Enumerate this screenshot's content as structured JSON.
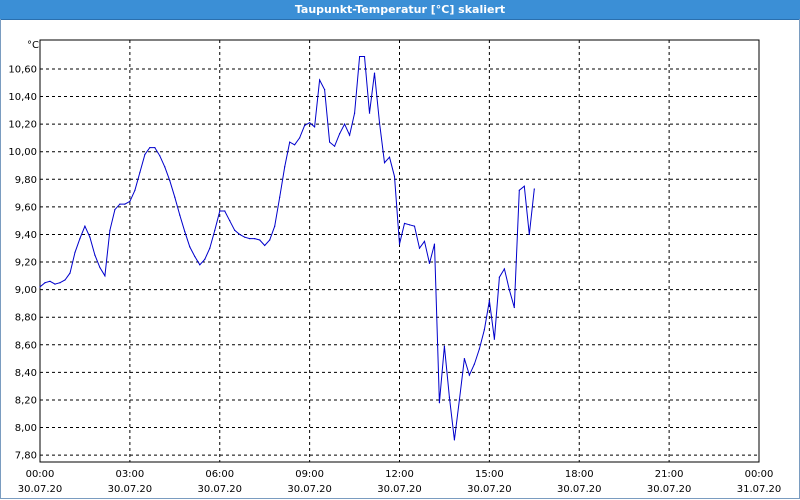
{
  "window": {
    "title": "Taupunkt-Temperatur [°C] skaliert"
  },
  "colors": {
    "titlebar": "#3b8fd6",
    "line": "#0000cc",
    "grid": "#000000"
  },
  "chart_data": {
    "type": "line",
    "title": "Taupunkt-Temperatur [°C] skaliert",
    "ylabel": "°C",
    "xlabel": "",
    "ylim": [
      7.75,
      10.81
    ],
    "xlim_hours": [
      0,
      24
    ],
    "grid": true,
    "grid_style": "dashed",
    "y_ticks": [
      7.8,
      8.0,
      8.2,
      8.4,
      8.6,
      8.8,
      9.0,
      9.2,
      9.4,
      9.6,
      9.8,
      10.0,
      10.2,
      10.4,
      10.6
    ],
    "y_tick_labels": [
      "7,80",
      "8,00",
      "8,20",
      "8,40",
      "8,60",
      "8,80",
      "9,00",
      "9,20",
      "9,40",
      "9,60",
      "9,80",
      "10,00",
      "10,20",
      "10,40",
      "10,60"
    ],
    "x_ticks": [
      {
        "time": "00:00",
        "date": "30.07.20"
      },
      {
        "time": "03:00",
        "date": "30.07.20"
      },
      {
        "time": "06:00",
        "date": "30.07.20"
      },
      {
        "time": "09:00",
        "date": "30.07.20"
      },
      {
        "time": "12:00",
        "date": "30.07.20"
      },
      {
        "time": "15:00",
        "date": "30.07.20"
      },
      {
        "time": "18:00",
        "date": "30.07.20"
      },
      {
        "time": "21:00",
        "date": "30.07.20"
      },
      {
        "time": "00:00",
        "date": "31.07.20"
      }
    ],
    "series": [
      {
        "name": "",
        "points": [
          [
            "00:00",
            9.02
          ],
          [
            "00:10",
            9.05
          ],
          [
            "00:20",
            9.06
          ],
          [
            "00:30",
            9.04
          ],
          [
            "00:40",
            9.05
          ],
          [
            "00:50",
            9.07
          ],
          [
            "01:00",
            9.12
          ],
          [
            "01:10",
            9.27
          ],
          [
            "01:20",
            9.37
          ],
          [
            "01:30",
            9.46
          ],
          [
            "01:40",
            9.38
          ],
          [
            "01:50",
            9.25
          ],
          [
            "02:00",
            9.16
          ],
          [
            "02:10",
            9.1
          ],
          [
            "02:20",
            9.43
          ],
          [
            "02:30",
            9.58
          ],
          [
            "02:40",
            9.62
          ],
          [
            "02:50",
            9.62
          ],
          [
            "03:00",
            9.64
          ],
          [
            "03:10",
            9.72
          ],
          [
            "03:20",
            9.85
          ],
          [
            "03:30",
            9.98
          ],
          [
            "03:40",
            10.03
          ],
          [
            "03:50",
            10.03
          ],
          [
            "04:00",
            9.97
          ],
          [
            "04:10",
            9.89
          ],
          [
            "04:20",
            9.79
          ],
          [
            "04:30",
            9.67
          ],
          [
            "04:40",
            9.54
          ],
          [
            "04:50",
            9.42
          ],
          [
            "05:00",
            9.31
          ],
          [
            "05:10",
            9.24
          ],
          [
            "05:20",
            9.18
          ],
          [
            "05:30",
            9.22
          ],
          [
            "05:40",
            9.3
          ],
          [
            "05:50",
            9.43
          ],
          [
            "06:00",
            9.57
          ],
          [
            "06:10",
            9.57
          ],
          [
            "06:20",
            9.5
          ],
          [
            "06:30",
            9.43
          ],
          [
            "06:40",
            9.4
          ],
          [
            "06:50",
            9.38
          ],
          [
            "07:00",
            9.37
          ],
          [
            "07:10",
            9.37
          ],
          [
            "07:20",
            9.36
          ],
          [
            "07:30",
            9.32
          ],
          [
            "07:40",
            9.36
          ],
          [
            "07:50",
            9.46
          ],
          [
            "08:00",
            9.67
          ],
          [
            "08:10",
            9.89
          ],
          [
            "08:20",
            10.07
          ],
          [
            "08:30",
            10.05
          ],
          [
            "08:40",
            10.1
          ],
          [
            "08:50",
            10.19
          ],
          [
            "09:00",
            10.21
          ],
          [
            "09:10",
            10.18
          ],
          [
            "09:20",
            10.52
          ],
          [
            "09:30",
            10.45
          ],
          [
            "09:40",
            10.07
          ],
          [
            "09:50",
            10.04
          ],
          [
            "10:00",
            10.13
          ],
          [
            "10:10",
            10.2
          ],
          [
            "10:20",
            10.12
          ],
          [
            "10:30",
            10.28
          ],
          [
            "10:40",
            10.69
          ],
          [
            "10:50",
            10.69
          ],
          [
            "11:00",
            10.28
          ],
          [
            "11:10",
            10.57
          ],
          [
            "11:20",
            10.21
          ],
          [
            "11:30",
            9.92
          ],
          [
            "11:40",
            9.96
          ],
          [
            "11:50",
            9.82
          ],
          [
            "12:00",
            9.33
          ],
          [
            "12:10",
            9.48
          ],
          [
            "12:20",
            9.47
          ],
          [
            "12:30",
            9.46
          ],
          [
            "12:40",
            9.3
          ],
          [
            "12:50",
            9.35
          ],
          [
            "13:00",
            9.19
          ],
          [
            "13:10",
            9.33
          ],
          [
            "13:20",
            8.18
          ],
          [
            "13:30",
            8.59
          ],
          [
            "13:40",
            8.22
          ],
          [
            "13:50",
            7.91
          ],
          [
            "14:00",
            8.2
          ],
          [
            "14:10",
            8.5
          ],
          [
            "14:20",
            8.38
          ],
          [
            "14:30",
            8.46
          ],
          [
            "14:40",
            8.57
          ],
          [
            "14:50",
            8.71
          ],
          [
            "15:00",
            8.92
          ],
          [
            "15:10",
            8.64
          ],
          [
            "15:20",
            9.09
          ],
          [
            "15:30",
            9.15
          ],
          [
            "15:40",
            9.0
          ],
          [
            "15:50",
            8.87
          ],
          [
            "16:00",
            9.72
          ],
          [
            "16:10",
            9.75
          ],
          [
            "16:20",
            9.4
          ],
          [
            "16:30",
            9.73
          ]
        ]
      }
    ]
  }
}
